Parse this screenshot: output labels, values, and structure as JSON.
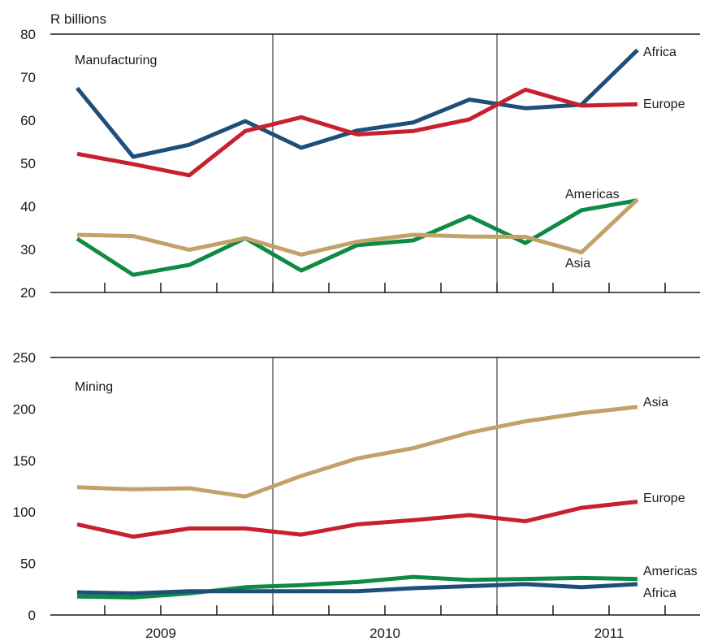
{
  "chart_data": [
    {
      "type": "line",
      "ylabel": "R billions",
      "panel_label": "Manufacturing",
      "ylim": [
        20,
        80
      ],
      "yticks": [
        20,
        30,
        40,
        50,
        60,
        70,
        80
      ],
      "x": [
        "2009Q1",
        "2009Q2",
        "2009Q3",
        "2009Q4",
        "2010Q1",
        "2010Q2",
        "2010Q3",
        "2010Q4",
        "2011Q1",
        "2011Q2",
        "2011Q3"
      ],
      "series": [
        {
          "name": "Africa",
          "color": "#1e4f7a",
          "values": [
            67.5,
            51.5,
            54.3,
            59.8,
            53.6,
            57.6,
            59.5,
            64.8,
            62.8,
            63.6,
            76.3
          ]
        },
        {
          "name": "Europe",
          "color": "#c8202e",
          "values": [
            52.2,
            49.8,
            47.2,
            57.5,
            60.7,
            56.7,
            57.5,
            60.2,
            67.1,
            63.4,
            63.7
          ]
        },
        {
          "name": "Americas",
          "color": "#0e8a45",
          "values": [
            32.5,
            24.1,
            26.4,
            32.6,
            25.1,
            31.0,
            32.1,
            37.7,
            31.5,
            39.1,
            41.4
          ]
        },
        {
          "name": "Asia",
          "color": "#c2a268",
          "values": [
            33.4,
            33.1,
            29.9,
            32.6,
            28.8,
            31.8,
            33.4,
            33.0,
            32.9,
            29.3,
            41.6
          ]
        }
      ]
    },
    {
      "type": "line",
      "panel_label": "Mining",
      "ylim": [
        0,
        250
      ],
      "yticks": [
        0,
        50,
        100,
        150,
        200,
        250
      ],
      "x": [
        "2009Q1",
        "2009Q2",
        "2009Q3",
        "2009Q4",
        "2010Q1",
        "2010Q2",
        "2010Q3",
        "2010Q4",
        "2011Q1",
        "2011Q2",
        "2011Q3"
      ],
      "series": [
        {
          "name": "Asia",
          "color": "#c2a268",
          "values": [
            124,
            122,
            123,
            115,
            135,
            152,
            162,
            177,
            188,
            196,
            202
          ]
        },
        {
          "name": "Europe",
          "color": "#c8202e",
          "values": [
            88,
            76,
            84,
            84,
            78,
            88,
            92,
            97,
            91,
            104,
            110
          ]
        },
        {
          "name": "Americas",
          "color": "#0e8a45",
          "values": [
            18,
            17,
            21,
            27,
            29,
            32,
            37,
            34,
            35,
            36,
            35
          ]
        },
        {
          "name": "Africa",
          "color": "#1e4f7a",
          "values": [
            22,
            21,
            23,
            23,
            23,
            23,
            26,
            28,
            30,
            27,
            30
          ]
        }
      ],
      "year_labels": [
        "2009",
        "2010",
        "2011"
      ]
    }
  ]
}
